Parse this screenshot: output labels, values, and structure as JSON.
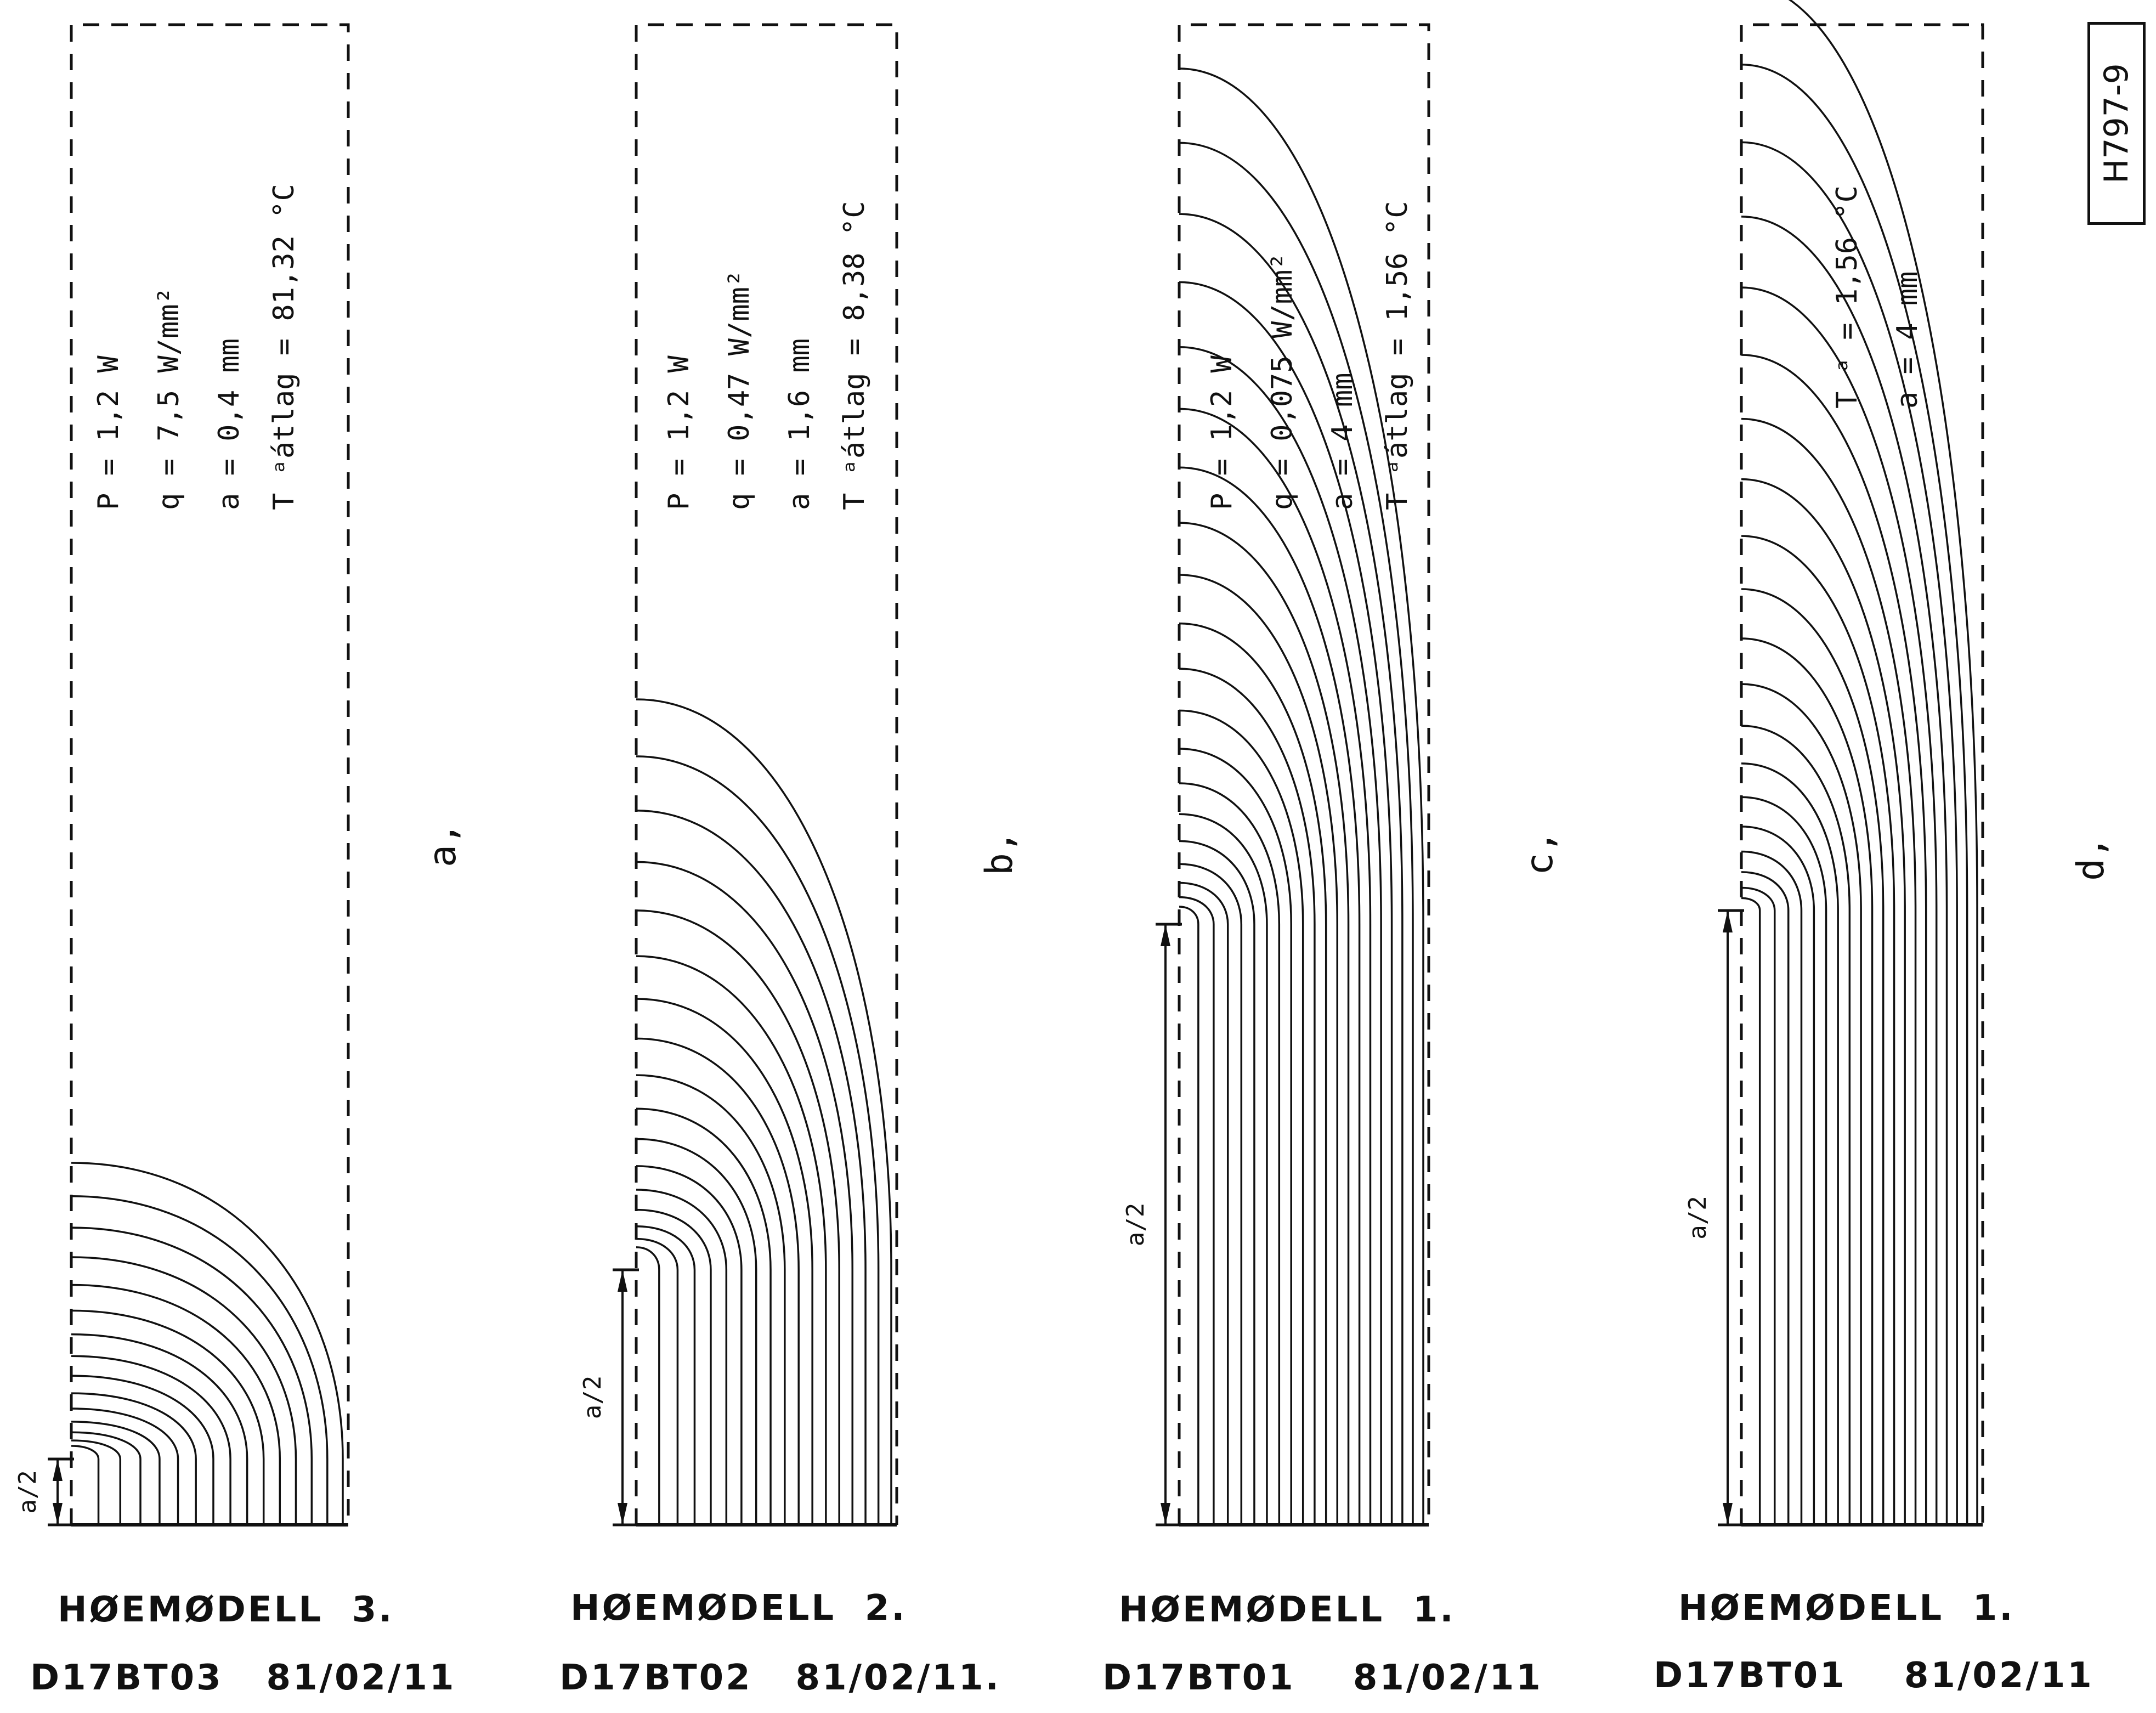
{
  "sheet_id": "H797-9",
  "panels": [
    {
      "label": "a,",
      "params": [
        "P = 1,2 W",
        "q = 7,5 W/mm²",
        "a = 0,4 mm",
        "T ᵃátlag = 81,32 °C"
      ],
      "half_width_label": "a/2",
      "model": "HØEMØDELL  3.",
      "run": "D17BT03   81/02/11",
      "contour_count": 15
    },
    {
      "label": "b,",
      "params": [
        "P = 1,2 W",
        "q = 0,47 W/mm²",
        "a = 1,6 mm",
        "T ᵃátlag = 8,38 °C"
      ],
      "half_width_label": "a/2",
      "model": "HØEMØDELL  2.",
      "run": "D17BT02   81/02/11.",
      "contour_count": 17
    },
    {
      "label": "c,",
      "params": [
        "P = 1,2 W",
        "q = 0,075 W/mm²",
        "a = 4 mm",
        "T ᵃátlag = 1,56 °C"
      ],
      "half_width_label": "a/2",
      "model": "HØEMØDELL  1.",
      "run": "D17BT01    81/02/11",
      "contour_count": 20
    },
    {
      "label": "d,",
      "params": [
        "T ᵃ = 1,56 °C",
        "a = 4 mm"
      ],
      "half_width_label": "a/2",
      "model": "HØEMØDELL  1.",
      "run": "D17BT01    81/02/11",
      "contour_count": 20
    }
  ]
}
